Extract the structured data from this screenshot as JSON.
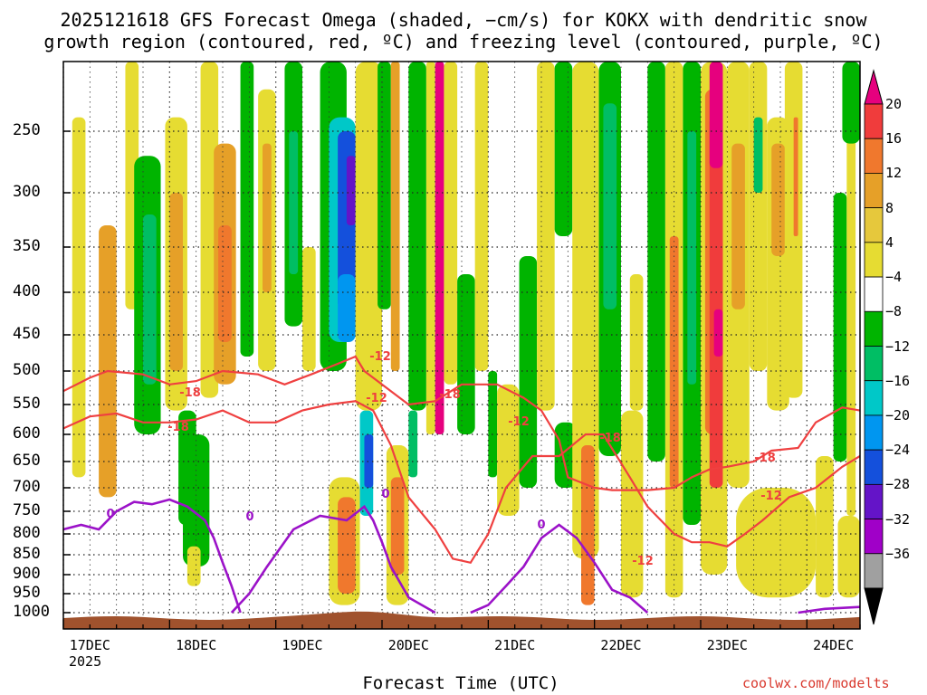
{
  "chart_data": {
    "type": "heatmap",
    "title_line1": "2025121618 GFS Forecast Omega (shaded, −cm/s) for KOKX with dendritic snow",
    "title_line2": "growth region (contoured, red, ºC) and freezing level (contoured, purple, ºC)",
    "xlabel": "Forecast Time (UTC)",
    "x_tick_labels": [
      "17DEC",
      "18DEC",
      "19DEC",
      "20DEC",
      "21DEC",
      "22DEC",
      "23DEC",
      "24DEC"
    ],
    "x_year_label": "2025",
    "y_tick_labels": [
      "250",
      "300",
      "350",
      "400",
      "450",
      "500",
      "550",
      "600",
      "650",
      "700",
      "750",
      "800",
      "850",
      "900",
      "950",
      "1000"
    ],
    "y_ticks_hpa": [
      250,
      300,
      350,
      400,
      450,
      500,
      550,
      600,
      650,
      700,
      750,
      800,
      850,
      900,
      950,
      1000
    ],
    "y_range_hpa": [
      200,
      1030
    ],
    "x_range_hours": [
      0,
      180
    ],
    "colorbar": {
      "labels": [
        "20",
        "16",
        "12",
        "8",
        "4",
        "−4",
        "−8",
        "−12",
        "−16",
        "−20",
        "−24",
        "−28",
        "−32",
        "−36"
      ],
      "colors": [
        "#e6007e",
        "#f03c3c",
        "#f0782d",
        "#e6a028",
        "#e6c83c",
        "#e6dc32",
        "#ffffff",
        "#00b400",
        "#00be64",
        "#00c8c8",
        "#0096f0",
        "#1450dc",
        "#6414c8",
        "#a000c8",
        "#a0a0a0",
        "#000000"
      ]
    },
    "contour_labels": {
      "dgz": [
        "-18",
        "-18",
        "-12",
        "-18",
        "-12",
        "-12",
        "-18",
        "-18",
        "-12",
        "-12"
      ],
      "freezing": [
        "0",
        "0",
        "0",
        "0"
      ]
    },
    "shaded_omega": [
      {
        "h0": 2,
        "h1": 5,
        "p0": 240,
        "p1": 680,
        "v": 4
      },
      {
        "h0": 8,
        "h1": 12,
        "p0": 330,
        "p1": 720,
        "v": 8
      },
      {
        "h0": 14,
        "h1": 17,
        "p0": 200,
        "p1": 420,
        "v": 4
      },
      {
        "h0": 16,
        "h1": 22,
        "p0": 270,
        "p1": 600,
        "v": -8
      },
      {
        "h0": 18,
        "h1": 21,
        "p0": 320,
        "p1": 520,
        "v": -12
      },
      {
        "h0": 23,
        "h1": 28,
        "p0": 240,
        "p1": 560,
        "v": 4
      },
      {
        "h0": 24,
        "h1": 27,
        "p0": 300,
        "p1": 500,
        "v": 8
      },
      {
        "h0": 26,
        "h1": 30,
        "p0": 560,
        "p1": 780,
        "v": -8
      },
      {
        "h0": 27,
        "h1": 33,
        "p0": 600,
        "p1": 880,
        "v": -8
      },
      {
        "h0": 28,
        "h1": 31,
        "p0": 830,
        "p1": 930,
        "v": 4
      },
      {
        "h0": 31,
        "h1": 35,
        "p0": 200,
        "p1": 540,
        "v": 4
      },
      {
        "h0": 34,
        "h1": 39,
        "p0": 260,
        "p1": 520,
        "v": 8
      },
      {
        "h0": 35,
        "h1": 38,
        "p0": 330,
        "p1": 460,
        "v": 12
      },
      {
        "h0": 40,
        "h1": 43,
        "p0": 200,
        "p1": 480,
        "v": -8
      },
      {
        "h0": 44,
        "h1": 48,
        "p0": 220,
        "p1": 500,
        "v": 4
      },
      {
        "h0": 45,
        "h1": 47,
        "p0": 260,
        "p1": 400,
        "v": 8
      },
      {
        "h0": 50,
        "h1": 54,
        "p0": 200,
        "p1": 440,
        "v": -8
      },
      {
        "h0": 51,
        "h1": 53,
        "p0": 250,
        "p1": 380,
        "v": -12
      },
      {
        "h0": 54,
        "h1": 57,
        "p0": 350,
        "p1": 500,
        "v": 4
      },
      {
        "h0": 58,
        "h1": 64,
        "p0": 200,
        "p1": 500,
        "v": -8
      },
      {
        "h0": 60,
        "h1": 66,
        "p0": 240,
        "p1": 460,
        "v": -16
      },
      {
        "h0": 62,
        "h1": 66,
        "p0": 250,
        "p1": 420,
        "v": -24
      },
      {
        "h0": 64,
        "h1": 66,
        "p0": 270,
        "p1": 330,
        "v": -28
      },
      {
        "h0": 62,
        "h1": 66,
        "p0": 380,
        "p1": 460,
        "v": -20
      },
      {
        "h0": 60,
        "h1": 67,
        "p0": 680,
        "p1": 980,
        "v": 4
      },
      {
        "h0": 62,
        "h1": 66,
        "p0": 720,
        "p1": 950,
        "v": 12
      },
      {
        "h0": 67,
        "h1": 70,
        "p0": 560,
        "p1": 760,
        "v": -16
      },
      {
        "h0": 68,
        "h1": 70,
        "p0": 600,
        "p1": 700,
        "v": -24
      },
      {
        "h0": 66,
        "h1": 72,
        "p0": 200,
        "p1": 560,
        "v": 4
      },
      {
        "h0": 71,
        "h1": 74,
        "p0": 200,
        "p1": 420,
        "v": -8
      },
      {
        "h0": 74,
        "h1": 76,
        "p0": 200,
        "p1": 500,
        "v": 8
      },
      {
        "h0": 73,
        "h1": 78,
        "p0": 620,
        "p1": 980,
        "v": 4
      },
      {
        "h0": 74,
        "h1": 77,
        "p0": 680,
        "p1": 900,
        "v": 12
      },
      {
        "h0": 78,
        "h1": 82,
        "p0": 200,
        "p1": 560,
        "v": -8
      },
      {
        "h0": 78,
        "h1": 80,
        "p0": 560,
        "p1": 680,
        "v": -12
      },
      {
        "h0": 82,
        "h1": 84,
        "p0": 200,
        "p1": 600,
        "v": 4
      },
      {
        "h0": 84,
        "h1": 86,
        "p0": 200,
        "p1": 600,
        "v": 20
      },
      {
        "h0": 86,
        "h1": 89,
        "p0": 200,
        "p1": 520,
        "v": 4
      },
      {
        "h0": 89,
        "h1": 93,
        "p0": 380,
        "p1": 600,
        "v": -8
      },
      {
        "h0": 93,
        "h1": 96,
        "p0": 200,
        "p1": 500,
        "v": 4
      },
      {
        "h0": 96,
        "h1": 98,
        "p0": 500,
        "p1": 680,
        "v": -8
      },
      {
        "h0": 98,
        "h1": 103,
        "p0": 520,
        "p1": 760,
        "v": 4
      },
      {
        "h0": 103,
        "h1": 107,
        "p0": 360,
        "p1": 700,
        "v": -8
      },
      {
        "h0": 107,
        "h1": 111,
        "p0": 200,
        "p1": 560,
        "v": 4
      },
      {
        "h0": 111,
        "h1": 115,
        "p0": 200,
        "p1": 340,
        "v": -8
      },
      {
        "h0": 111,
        "h1": 116,
        "p0": 580,
        "p1": 700,
        "v": -8
      },
      {
        "h0": 115,
        "h1": 121,
        "p0": 200,
        "p1": 860,
        "v": 4
      },
      {
        "h0": 117,
        "h1": 120,
        "p0": 620,
        "p1": 980,
        "v": 12
      },
      {
        "h0": 121,
        "h1": 126,
        "p0": 200,
        "p1": 640,
        "v": -8
      },
      {
        "h0": 122,
        "h1": 125,
        "p0": 230,
        "p1": 420,
        "v": -12
      },
      {
        "h0": 126,
        "h1": 131,
        "p0": 560,
        "p1": 960,
        "v": 4
      },
      {
        "h0": 128,
        "h1": 131,
        "p0": 380,
        "p1": 560,
        "v": 4
      },
      {
        "h0": 132,
        "h1": 136,
        "p0": 200,
        "p1": 650,
        "v": -8
      },
      {
        "h0": 136,
        "h1": 140,
        "p0": 200,
        "p1": 960,
        "v": 4
      },
      {
        "h0": 137,
        "h1": 139,
        "p0": 340,
        "p1": 700,
        "v": 12
      },
      {
        "h0": 140,
        "h1": 144,
        "p0": 200,
        "p1": 780,
        "v": -8
      },
      {
        "h0": 141,
        "h1": 143,
        "p0": 250,
        "p1": 520,
        "v": -12
      },
      {
        "h0": 144,
        "h1": 150,
        "p0": 200,
        "p1": 900,
        "v": 4
      },
      {
        "h0": 145,
        "h1": 149,
        "p0": 220,
        "p1": 600,
        "v": 12
      },
      {
        "h0": 146,
        "h1": 149,
        "p0": 240,
        "p1": 700,
        "v": 16
      },
      {
        "h0": 146,
        "h1": 149,
        "p0": 200,
        "p1": 280,
        "v": 20
      },
      {
        "h0": 147,
        "h1": 149,
        "p0": 420,
        "p1": 480,
        "v": 20
      },
      {
        "h0": 150,
        "h1": 155,
        "p0": 200,
        "p1": 700,
        "v": 4
      },
      {
        "h0": 151,
        "h1": 154,
        "p0": 260,
        "p1": 420,
        "v": 8
      },
      {
        "h0": 155,
        "h1": 159,
        "p0": 200,
        "p1": 500,
        "v": 4
      },
      {
        "h0": 156,
        "h1": 158,
        "p0": 240,
        "p1": 300,
        "v": -12
      },
      {
        "h0": 159,
        "h1": 164,
        "p0": 240,
        "p1": 560,
        "v": 4
      },
      {
        "h0": 160,
        "h1": 163,
        "p0": 260,
        "p1": 360,
        "v": 8
      },
      {
        "h0": 163,
        "h1": 167,
        "p0": 200,
        "p1": 540,
        "v": 4
      },
      {
        "h0": 165,
        "h1": 166,
        "p0": 240,
        "p1": 340,
        "v": 12
      },
      {
        "h0": 152,
        "h1": 170,
        "p0": 700,
        "p1": 960,
        "v": 4
      },
      {
        "h0": 170,
        "h1": 174,
        "p0": 640,
        "p1": 960,
        "v": 4
      },
      {
        "h0": 174,
        "h1": 177,
        "p0": 300,
        "p1": 650,
        "v": -8
      },
      {
        "h0": 177,
        "h1": 179,
        "p0": 250,
        "p1": 760,
        "v": 4
      },
      {
        "h0": 176,
        "h1": 180,
        "p0": 200,
        "p1": 260,
        "v": -8
      },
      {
        "h0": 175,
        "h1": 180,
        "p0": 760,
        "p1": 960,
        "v": 4
      }
    ],
    "dgz_contours": [
      [
        [
          0,
          530
        ],
        [
          6,
          510
        ],
        [
          10,
          500
        ],
        [
          18,
          505
        ],
        [
          24,
          520
        ],
        [
          30,
          515
        ],
        [
          36,
          500
        ],
        [
          44,
          505
        ],
        [
          50,
          520
        ],
        [
          56,
          505
        ],
        [
          62,
          490
        ],
        [
          66,
          480
        ],
        [
          68,
          500
        ],
        [
          74,
          530
        ],
        [
          78,
          550
        ],
        [
          84,
          545
        ],
        [
          90,
          520
        ],
        [
          98,
          520
        ],
        [
          104,
          540
        ],
        [
          108,
          560
        ],
        [
          112,
          610
        ],
        [
          114,
          680
        ],
        [
          120,
          700
        ],
        [
          124,
          705
        ],
        [
          132,
          705
        ],
        [
          138,
          700
        ],
        [
          142,
          680
        ],
        [
          146,
          665
        ],
        [
          150,
          660
        ],
        [
          156,
          650
        ],
        [
          160,
          630
        ],
        [
          166,
          625
        ],
        [
          170,
          580
        ],
        [
          176,
          555
        ],
        [
          180,
          560
        ]
      ],
      [
        [
          0,
          590
        ],
        [
          6,
          570
        ],
        [
          12,
          565
        ],
        [
          18,
          580
        ],
        [
          24,
          580
        ],
        [
          30,
          575
        ],
        [
          36,
          560
        ],
        [
          42,
          580
        ],
        [
          48,
          580
        ],
        [
          54,
          560
        ],
        [
          60,
          550
        ],
        [
          66,
          545
        ],
        [
          70,
          560
        ],
        [
          74,
          620
        ],
        [
          78,
          720
        ],
        [
          84,
          790
        ],
        [
          88,
          860
        ],
        [
          92,
          870
        ],
        [
          96,
          800
        ],
        [
          100,
          700
        ],
        [
          106,
          640
        ],
        [
          112,
          640
        ],
        [
          118,
          600
        ],
        [
          122,
          600
        ],
        [
          128,
          680
        ],
        [
          132,
          740
        ],
        [
          138,
          800
        ],
        [
          142,
          820
        ],
        [
          146,
          820
        ],
        [
          150,
          830
        ],
        [
          154,
          800
        ],
        [
          158,
          770
        ],
        [
          164,
          720
        ],
        [
          170,
          700
        ],
        [
          176,
          660
        ],
        [
          180,
          640
        ]
      ]
    ],
    "freezing_contours": [
      [
        [
          0,
          790
        ],
        [
          4,
          780
        ],
        [
          8,
          790
        ],
        [
          12,
          750
        ],
        [
          16,
          730
        ],
        [
          20,
          735
        ],
        [
          24,
          725
        ],
        [
          28,
          740
        ],
        [
          32,
          770
        ],
        [
          34,
          810
        ],
        [
          36,
          870
        ],
        [
          38,
          930
        ],
        [
          40,
          1000
        ]
      ],
      [
        [
          38,
          1000
        ],
        [
          42,
          950
        ],
        [
          46,
          880
        ],
        [
          52,
          790
        ],
        [
          58,
          760
        ],
        [
          64,
          770
        ],
        [
          68,
          740
        ],
        [
          70,
          770
        ],
        [
          72,
          820
        ],
        [
          74,
          880
        ],
        [
          78,
          960
        ],
        [
          84,
          1000
        ]
      ],
      [
        [
          92,
          1000
        ],
        [
          96,
          980
        ],
        [
          100,
          930
        ],
        [
          104,
          880
        ],
        [
          108,
          810
        ],
        [
          112,
          780
        ],
        [
          116,
          810
        ],
        [
          120,
          870
        ],
        [
          124,
          940
        ],
        [
          128,
          960
        ],
        [
          132,
          1000
        ]
      ],
      [
        [
          166,
          1000
        ],
        [
          172,
          990
        ],
        [
          180,
          985
        ]
      ]
    ]
  }
}
